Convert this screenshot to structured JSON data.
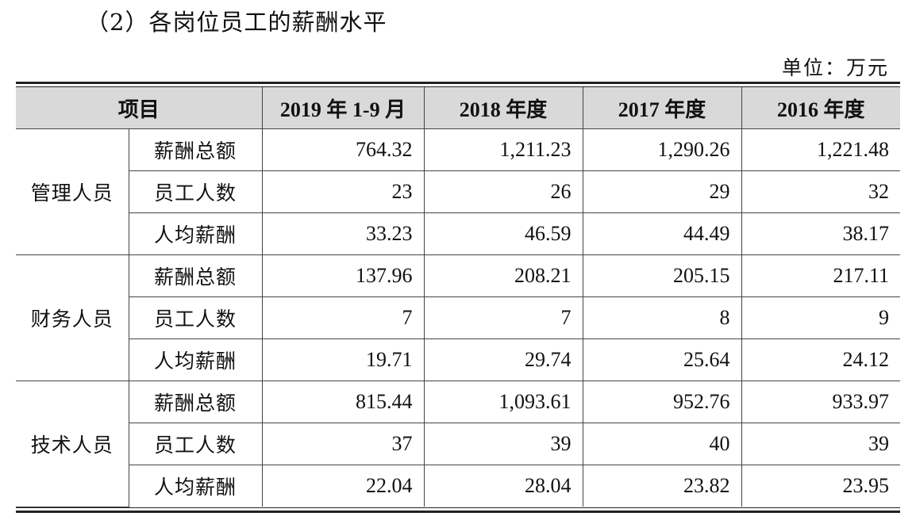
{
  "heading": "（2）各岗位员工的薪酬水平",
  "unit": "单位：万元",
  "table": {
    "columns": [
      "项目",
      "2019 年 1-9 月",
      "2018 年度",
      "2017 年度",
      "2016 年度"
    ],
    "groups": [
      {
        "name": "管理人员",
        "rows": [
          {
            "metric": "薪酬总额",
            "values": [
              "764.32",
              "1,211.23",
              "1,290.26",
              "1,221.48"
            ]
          },
          {
            "metric": "员工人数",
            "values": [
              "23",
              "26",
              "29",
              "32"
            ]
          },
          {
            "metric": "人均薪酬",
            "values": [
              "33.23",
              "46.59",
              "44.49",
              "38.17"
            ]
          }
        ]
      },
      {
        "name": "财务人员",
        "rows": [
          {
            "metric": "薪酬总额",
            "values": [
              "137.96",
              "208.21",
              "205.15",
              "217.11"
            ]
          },
          {
            "metric": "员工人数",
            "values": [
              "7",
              "7",
              "8",
              "9"
            ]
          },
          {
            "metric": "人均薪酬",
            "values": [
              "19.71",
              "29.74",
              "25.64",
              "24.12"
            ]
          }
        ]
      },
      {
        "name": "技术人员",
        "rows": [
          {
            "metric": "薪酬总额",
            "values": [
              "815.44",
              "1,093.61",
              "952.76",
              "933.97"
            ]
          },
          {
            "metric": "员工人数",
            "values": [
              "37",
              "39",
              "40",
              "39"
            ]
          },
          {
            "metric": "人均薪酬",
            "values": [
              "22.04",
              "28.04",
              "23.82",
              "23.95"
            ]
          }
        ]
      }
    ]
  }
}
